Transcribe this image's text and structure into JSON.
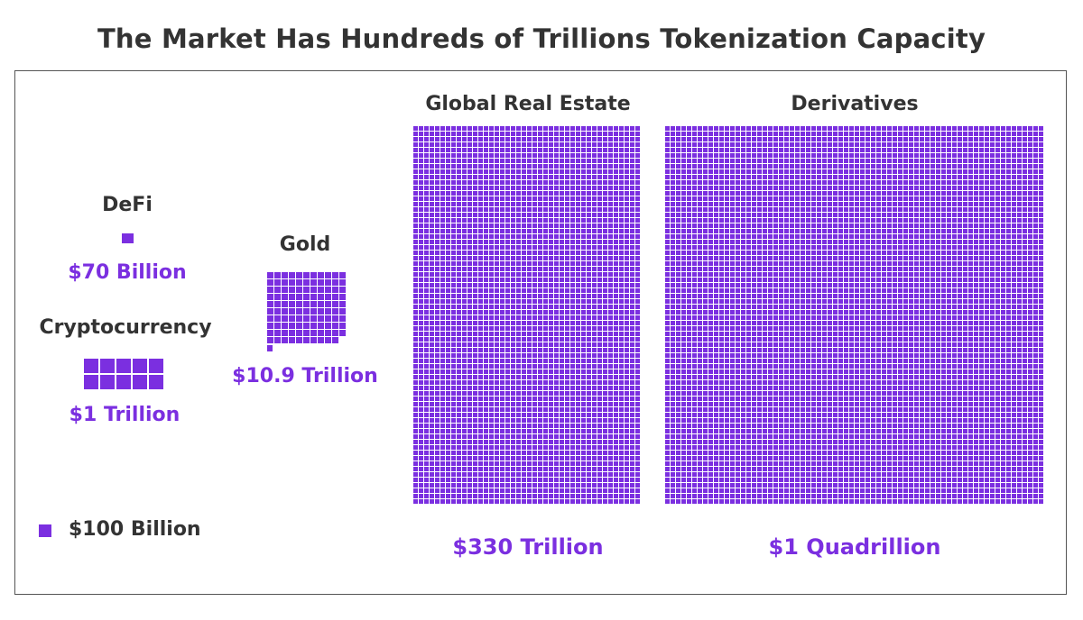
{
  "title": "The Market Has Hundreds of Trillions Tokenization Capacity",
  "colors": {
    "accent": "#7b2fe0",
    "text": "#333333",
    "frame": "#555555"
  },
  "legend": {
    "label": "$100 Billion",
    "unit_value_billions": 100
  },
  "chart_data": {
    "type": "waffle",
    "unit": "$100 Billion per square",
    "categories": [
      "DeFi",
      "Cryptocurrency",
      "Gold",
      "Global Real Estate",
      "Derivatives"
    ],
    "value_labels": [
      "$70 Billion",
      "$1 Trillion",
      "$10.9 Trillion",
      "$330 Trillion",
      "$1 Quadrillion"
    ],
    "values_billions": [
      70,
      1000,
      10900,
      330000,
      1000000
    ]
  }
}
